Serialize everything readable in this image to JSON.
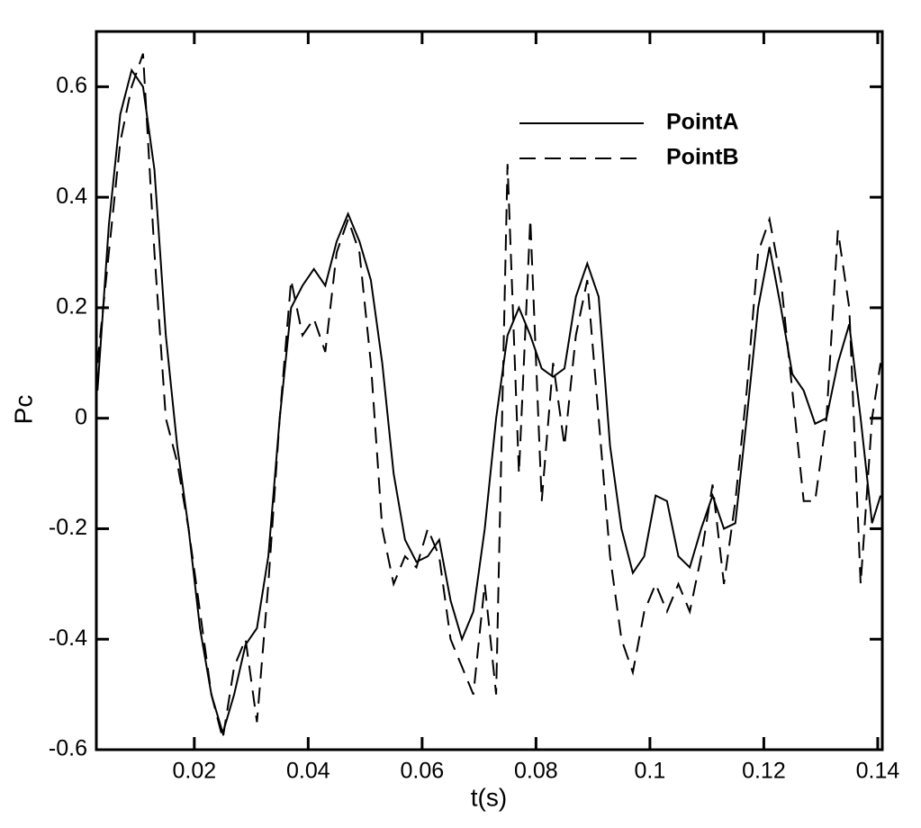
{
  "chart_data": {
    "type": "line",
    "x_label": "t(s)",
    "y_label": "Pc",
    "x": [
      0.003,
      0.005,
      0.007,
      0.009,
      0.011,
      0.013,
      0.015,
      0.017,
      0.019,
      0.021,
      0.023,
      0.025,
      0.027,
      0.029,
      0.031,
      0.033,
      0.035,
      0.037,
      0.039,
      0.041,
      0.043,
      0.045,
      0.047,
      0.049,
      0.051,
      0.053,
      0.055,
      0.057,
      0.059,
      0.061,
      0.063,
      0.065,
      0.067,
      0.069,
      0.071,
      0.073,
      0.075,
      0.077,
      0.079,
      0.081,
      0.083,
      0.085,
      0.087,
      0.089,
      0.091,
      0.093,
      0.095,
      0.097,
      0.099,
      0.101,
      0.103,
      0.105,
      0.107,
      0.109,
      0.111,
      0.113,
      0.115,
      0.117,
      0.119,
      0.121,
      0.123,
      0.125,
      0.127,
      0.129,
      0.131,
      0.133,
      0.135,
      0.137,
      0.139,
      0.1405
    ],
    "series": [
      {
        "name": "PointA",
        "color": "#000000",
        "dash": "solid",
        "values": [
          0.05,
          0.35,
          0.55,
          0.63,
          0.6,
          0.45,
          0.15,
          -0.05,
          -0.2,
          -0.38,
          -0.5,
          -0.57,
          -0.5,
          -0.41,
          -0.38,
          -0.25,
          0.0,
          0.2,
          0.24,
          0.27,
          0.24,
          0.32,
          0.37,
          0.32,
          0.25,
          0.1,
          -0.1,
          -0.22,
          -0.26,
          -0.25,
          -0.22,
          -0.33,
          -0.4,
          -0.35,
          -0.2,
          0.0,
          0.15,
          0.2,
          0.15,
          0.09,
          0.075,
          0.09,
          0.22,
          0.28,
          0.22,
          -0.05,
          -0.2,
          -0.28,
          -0.25,
          -0.14,
          -0.15,
          -0.25,
          -0.27,
          -0.2,
          -0.14,
          -0.2,
          -0.19,
          0.0,
          0.2,
          0.31,
          0.2,
          0.08,
          0.05,
          -0.01,
          0.0,
          0.1,
          0.17,
          0.0,
          -0.19,
          -0.14
        ]
      },
      {
        "name": "PointB",
        "color": "#000000",
        "dash": "dashed",
        "values": [
          0.1,
          0.3,
          0.5,
          0.6,
          0.66,
          0.3,
          0.0,
          -0.08,
          -0.2,
          -0.35,
          -0.5,
          -0.58,
          -0.45,
          -0.4,
          -0.55,
          -0.3,
          0.0,
          0.25,
          0.15,
          0.18,
          0.12,
          0.3,
          0.36,
          0.3,
          0.1,
          -0.2,
          -0.3,
          -0.25,
          -0.27,
          -0.2,
          -0.25,
          -0.4,
          -0.45,
          -0.5,
          -0.3,
          -0.5,
          0.46,
          -0.1,
          0.36,
          -0.15,
          0.1,
          -0.05,
          0.15,
          0.25,
          0.0,
          -0.25,
          -0.4,
          -0.46,
          -0.35,
          -0.3,
          -0.35,
          -0.3,
          -0.35,
          -0.25,
          -0.12,
          -0.3,
          -0.15,
          0.05,
          0.3,
          0.36,
          0.25,
          0.05,
          -0.15,
          -0.15,
          0.0,
          0.34,
          0.2,
          -0.3,
          0.0,
          0.1
        ]
      }
    ],
    "xlim": [
      0.0028,
      0.1408
    ],
    "xticks": [
      0.02,
      0.04,
      0.06,
      0.08,
      0.1,
      0.12,
      0.14
    ],
    "ylim": [
      -0.6,
      0.7
    ],
    "yticks": [
      -0.6,
      -0.4,
      -0.2,
      0,
      0.2,
      0.4,
      0.6
    ],
    "legend": "upper right"
  }
}
